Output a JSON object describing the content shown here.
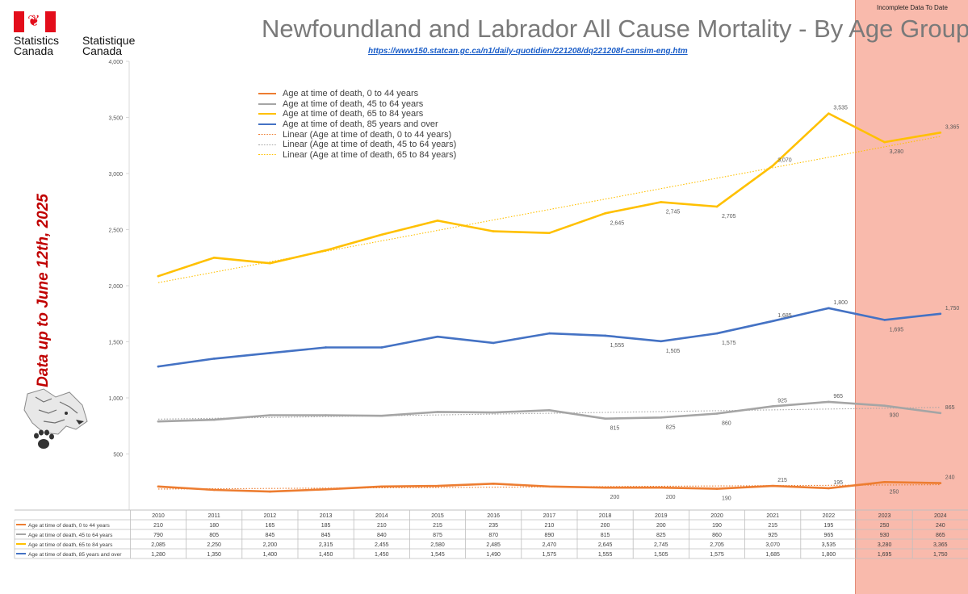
{
  "header": {
    "title": "Newfoundland and Labrador All Cause Mortality - By Age Group",
    "source_url": "https://www150.statcan.gc.ca/n1/daily-quotidien/221208/dq221208f-cansim-eng.htm",
    "org_en": "Statistics Canada",
    "org_fr": "Statistique Canada",
    "side_note": "Data up to June 12th, 2025",
    "incomplete_label": "Incomplete Data To Date"
  },
  "icons": {
    "flag": "canada-flag-icon",
    "leaf": "maple-leaf-icon",
    "wolf": "wolf-logo-icon"
  },
  "colors": {
    "s0_44": "#ED7D31",
    "s45_64": "#A5A5A5",
    "s65_84": "#FFC000",
    "s85": "#4472C4",
    "incomplete_band": "#F7A08C",
    "side_note": "#C00000",
    "link": "#1A5DC8"
  },
  "chart_data": {
    "type": "line",
    "title": "Newfoundland and Labrador All Cause Mortality - By Age Group",
    "x": [
      "2010",
      "2011",
      "2012",
      "2013",
      "2014",
      "2015",
      "2016",
      "2017",
      "2018",
      "2019",
      "2020",
      "2021",
      "2022",
      "2023",
      "2024"
    ],
    "ylim": [
      0,
      4000
    ],
    "yticks": [
      "500",
      "1,000",
      "1,500",
      "2,000",
      "2,500",
      "3,000",
      "3,500",
      "4,000"
    ],
    "ytick_values": [
      500,
      1000,
      1500,
      2000,
      2500,
      3000,
      3500,
      4000
    ],
    "grid": false,
    "series": [
      {
        "key": "s0_44",
        "name": "Age at time of death, 0 to 44 years",
        "color": "#ED7D31",
        "values": [
          210,
          180,
          165,
          185,
          210,
          215,
          235,
          210,
          200,
          200,
          190,
          215,
          195,
          250,
          240
        ],
        "labels": [
          "210",
          "180",
          "165",
          "185",
          "210",
          "215",
          "235",
          "210",
          "200",
          "200",
          "190",
          "215",
          "195",
          "250",
          "240"
        ],
        "trendline": true,
        "trend_name": "Linear (Age at time of death, 0 to 44 years)"
      },
      {
        "key": "s45_64",
        "name": "Age at time of death, 45 to 64 years",
        "color": "#A5A5A5",
        "values": [
          790,
          805,
          845,
          845,
          840,
          875,
          870,
          890,
          815,
          825,
          860,
          925,
          965,
          930,
          865
        ],
        "labels": [
          "790",
          "805",
          "845",
          "845",
          "840",
          "875",
          "870",
          "890",
          "815",
          "825",
          "860",
          "925",
          "965",
          "930",
          "865"
        ],
        "trendline": true,
        "trend_name": "Linear (Age at time of death, 45 to 64 years)"
      },
      {
        "key": "s65_84",
        "name": "Age at time of death, 65 to 84 years",
        "color": "#FFC000",
        "values": [
          2085,
          2250,
          2200,
          2315,
          2455,
          2580,
          2485,
          2470,
          2645,
          2745,
          2705,
          3070,
          3535,
          3280,
          3365
        ],
        "labels": [
          "2,085",
          "2,250",
          "2,200",
          "2,315",
          "2,455",
          "2,580",
          "2,485",
          "2,470",
          "2,645",
          "2,745",
          "2,705",
          "3,070",
          "3,535",
          "3,280",
          "3,365"
        ],
        "trendline": true,
        "trend_name": "Linear (Age at time of death, 65 to 84 years)"
      },
      {
        "key": "s85",
        "name": "Age at time of death, 85 years and over",
        "color": "#4472C4",
        "values": [
          1280,
          1350,
          1400,
          1450,
          1450,
          1545,
          1490,
          1575,
          1555,
          1505,
          1575,
          1685,
          1800,
          1695,
          1750
        ],
        "labels": [
          "1,280",
          "1,350",
          "1,400",
          "1,450",
          "1,450",
          "1,545",
          "1,490",
          "1,575",
          "1,555",
          "1,505",
          "1,575",
          "1,685",
          "1,800",
          "1,695",
          "1,750"
        ],
        "trendline": false
      }
    ],
    "data_labels": [
      {
        "series": 0,
        "i": 8
      },
      {
        "series": 0,
        "i": 9
      },
      {
        "series": 0,
        "i": 10
      },
      {
        "series": 0,
        "i": 11
      },
      {
        "series": 0,
        "i": 12
      },
      {
        "series": 0,
        "i": 13
      },
      {
        "series": 0,
        "i": 14
      },
      {
        "series": 1,
        "i": 8
      },
      {
        "series": 1,
        "i": 9
      },
      {
        "series": 1,
        "i": 10
      },
      {
        "series": 1,
        "i": 11
      },
      {
        "series": 1,
        "i": 12
      },
      {
        "series": 1,
        "i": 13
      },
      {
        "series": 1,
        "i": 14
      },
      {
        "series": 2,
        "i": 8
      },
      {
        "series": 2,
        "i": 9
      },
      {
        "series": 2,
        "i": 10
      },
      {
        "series": 2,
        "i": 11
      },
      {
        "series": 2,
        "i": 12
      },
      {
        "series": 2,
        "i": 13
      },
      {
        "series": 2,
        "i": 14
      },
      {
        "series": 3,
        "i": 8
      },
      {
        "series": 3,
        "i": 9
      },
      {
        "series": 3,
        "i": 10
      },
      {
        "series": 3,
        "i": 11
      },
      {
        "series": 3,
        "i": 12
      },
      {
        "series": 3,
        "i": 13
      },
      {
        "series": 3,
        "i": 14
      }
    ],
    "legend_position": "top-left",
    "data_table": true
  }
}
